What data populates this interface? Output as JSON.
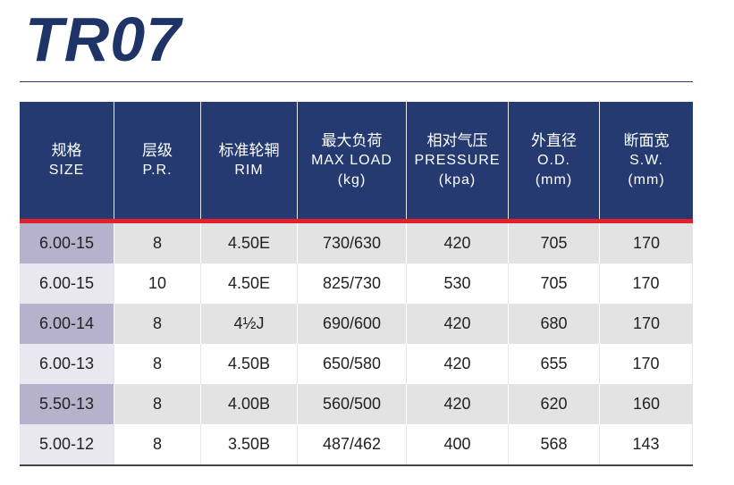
{
  "title": "TR07",
  "headers": [
    {
      "cn": "规格",
      "en": "SIZE",
      "en2": ""
    },
    {
      "cn": "层级",
      "en": "P.R.",
      "en2": ""
    },
    {
      "cn": "标准轮辋",
      "en": "RIM",
      "en2": ""
    },
    {
      "cn": "最大负荷",
      "en": "MAX LOAD",
      "en2": "(kg)"
    },
    {
      "cn": "相对气压",
      "en": "PRESSURE",
      "en2": "(kpa)"
    },
    {
      "cn": "外直径",
      "en": "O.D.",
      "en2": "(mm)"
    },
    {
      "cn": "断面宽",
      "en": "S.W.",
      "en2": "(mm)"
    }
  ],
  "rows": [
    [
      "6.00-15",
      "8",
      "4.50E",
      "730/630",
      "420",
      "705",
      "170"
    ],
    [
      "6.00-15",
      "10",
      "4.50E",
      "825/730",
      "530",
      "705",
      "170"
    ],
    [
      "6.00-14",
      "8",
      "4½J",
      "690/600",
      "420",
      "680",
      "170"
    ],
    [
      "6.00-13",
      "8",
      "4.50B",
      "650/580",
      "420",
      "655",
      "170"
    ],
    [
      "5.50-13",
      "8",
      "4.00B",
      "560/500",
      "420",
      "620",
      "160"
    ],
    [
      "5.00-12",
      "8",
      "3.50B",
      "487/462",
      "400",
      "568",
      "143"
    ]
  ],
  "colors": {
    "header_bg": "#243a70",
    "accent_red": "#e0202a",
    "title": "#1f3466",
    "row_shade": "#e3e3e3",
    "size_col_shade": "#b7b2cc"
  }
}
